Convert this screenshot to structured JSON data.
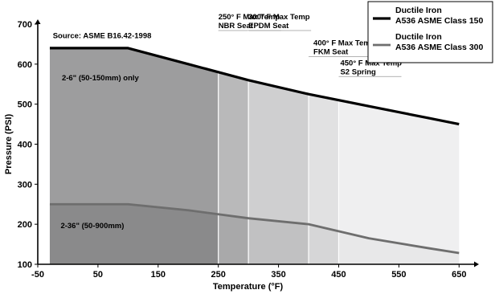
{
  "chart_data": {
    "type": "area",
    "xlabel": "Temperature (°F)",
    "ylabel": "Pressure (PSI)",
    "xlim": [
      -50,
      675
    ],
    "ylim": [
      100,
      700
    ],
    "x_domain": [
      -30,
      650
    ],
    "xticks": [
      -50,
      50,
      150,
      250,
      350,
      450,
      550,
      650
    ],
    "yticks": [
      100,
      200,
      300,
      400,
      500,
      600,
      700
    ],
    "grid": false,
    "legend_position": "top-right",
    "series": [
      {
        "name": "Ductile Iron A536 ASME Class 150",
        "legend_lines": [
          "Ductile Iron",
          "A536 ASME Class 150"
        ],
        "color": "#000000",
        "x": [
          -30,
          100,
          200,
          300,
          400,
          500,
          600,
          650
        ],
        "y": [
          640,
          640,
          600,
          560,
          525,
          495,
          465,
          450
        ]
      },
      {
        "name": "Ductile Iron A536 ASME Class 300",
        "legend_lines": [
          "Ductile Iron",
          "A536 ASME Class 300"
        ],
        "color": "#6e6e6e",
        "x": [
          -30,
          100,
          200,
          300,
          400,
          500,
          600,
          650
        ],
        "y": [
          250,
          250,
          235,
          215,
          200,
          165,
          140,
          128
        ]
      }
    ],
    "temperature_limits": [
      {
        "x": 250,
        "lines": [
          "250° F Max Temp",
          "NBR Seat"
        ],
        "label_y": 680,
        "label_dx": 0
      },
      {
        "x": 300,
        "lines": [
          "300° F Max Temp",
          "EPDM Seat"
        ],
        "label_y": 680,
        "label_dx": 0
      },
      {
        "x": 400,
        "lines": [
          "400° F Max Temp",
          "FKM Seat"
        ],
        "label_y": 615,
        "label_dx": 6
      },
      {
        "x": 450,
        "lines": [
          "450° F Max Temp",
          "S2 Spring"
        ],
        "label_y": 565,
        "label_dx": 2
      }
    ],
    "zone_fills": [
      "#9d9d9e",
      "#b9b9ba",
      "#cfcfd0",
      "#e1e1e2",
      "#efeff0"
    ],
    "lower_zone_fills": [
      "#8a8a8b",
      "#a9a9aa",
      "#c1c1c2",
      "#d6d6d7",
      "#e8e8e9"
    ],
    "annotations": [
      {
        "text": "Source: ASME B16.42-1998",
        "x": -25,
        "y": 665
      },
      {
        "text": "2-6\" (50-150mm) only",
        "x": -10,
        "y": 560
      },
      {
        "text": "2-36\" (50-900mm)",
        "x": -12,
        "y": 190
      }
    ]
  }
}
